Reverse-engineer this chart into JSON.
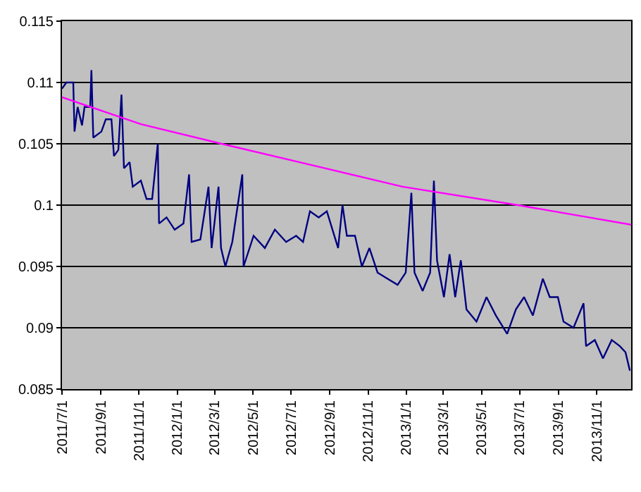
{
  "chart_data": {
    "type": "line",
    "marker": "none",
    "grid": "y",
    "xlim": [
      "2011-07-01",
      "2013-12-26"
    ],
    "ylim": [
      0.085,
      0.115
    ],
    "yticks": [
      0.085,
      0.09,
      0.095,
      0.1,
      0.105,
      0.11,
      0.115
    ],
    "xticks": [
      {
        "value": "2011-07-01",
        "label": "2011/7/1"
      },
      {
        "value": "2011-09-01",
        "label": "2011/9/1"
      },
      {
        "value": "2011-11-01",
        "label": "2011/11/1"
      },
      {
        "value": "2012-01-01",
        "label": "2012/1/1"
      },
      {
        "value": "2012-03-01",
        "label": "2012/3/1"
      },
      {
        "value": "2012-05-01",
        "label": "2012/5/1"
      },
      {
        "value": "2012-07-01",
        "label": "2012/7/1"
      },
      {
        "value": "2012-09-01",
        "label": "2012/9/1"
      },
      {
        "value": "2012-11-01",
        "label": "2012/11/1"
      },
      {
        "value": "2013-01-01",
        "label": "2013/1/1"
      },
      {
        "value": "2013-03-01",
        "label": "2013/3/1"
      },
      {
        "value": "2013-05-01",
        "label": "2013/5/1"
      },
      {
        "value": "2013-07-01",
        "label": "2013/7/1"
      },
      {
        "value": "2013-09-01",
        "label": "2013/9/1"
      },
      {
        "value": "2013-11-01",
        "label": "2013/11/1"
      }
    ],
    "series": [
      {
        "color": "#000080",
        "x": [
          "2011-07-01",
          "2011-07-08",
          "2011-07-19",
          "2011-07-21",
          "2011-07-26",
          "2011-08-02",
          "2011-08-06",
          "2011-08-15",
          "2011-08-17",
          "2011-08-20",
          "2011-09-02",
          "2011-09-09",
          "2011-09-18",
          "2011-09-22",
          "2011-09-29",
          "2011-10-04",
          "2011-10-08",
          "2011-10-17",
          "2011-10-22",
          "2011-11-04",
          "2011-11-13",
          "2011-11-22",
          "2011-12-01",
          "2011-12-03",
          "2011-12-15",
          "2011-12-28",
          "2012-01-11",
          "2012-01-20",
          "2012-01-24",
          "2012-02-07",
          "2012-02-20",
          "2012-02-25",
          "2012-03-07",
          "2012-03-11",
          "2012-03-18",
          "2012-03-29",
          "2012-04-14",
          "2012-04-16",
          "2012-05-02",
          "2012-05-20",
          "2012-06-05",
          "2012-06-23",
          "2012-07-09",
          "2012-07-20",
          "2012-07-31",
          "2012-08-14",
          "2012-08-27",
          "2012-09-05",
          "2012-09-14",
          "2012-09-21",
          "2012-09-28",
          "2012-10-11",
          "2012-10-22",
          "2012-11-03",
          "2012-11-16",
          "2012-12-02",
          "2012-12-18",
          "2012-12-31",
          "2013-01-09",
          "2013-01-14",
          "2013-01-27",
          "2013-02-08",
          "2013-02-14",
          "2013-02-19",
          "2013-03-02",
          "2013-03-11",
          "2013-03-20",
          "2013-03-29",
          "2013-04-07",
          "2013-04-23",
          "2013-05-09",
          "2013-05-24",
          "2013-06-11",
          "2013-06-25",
          "2013-07-08",
          "2013-07-22",
          "2013-08-07",
          "2013-08-18",
          "2013-08-31",
          "2013-09-09",
          "2013-09-25",
          "2013-10-11",
          "2013-10-15",
          "2013-10-29",
          "2013-11-11",
          "2013-11-25",
          "2013-12-08",
          "2013-12-17",
          "2013-12-24"
        ],
        "values": [
          0.1095,
          0.11,
          0.11,
          0.106,
          0.108,
          0.1065,
          0.108,
          0.108,
          0.111,
          0.1055,
          0.106,
          0.107,
          0.107,
          0.104,
          0.1045,
          0.109,
          0.103,
          0.1035,
          0.1015,
          0.102,
          0.1005,
          0.1005,
          0.105,
          0.0985,
          0.099,
          0.098,
          0.0985,
          0.1025,
          0.097,
          0.0972,
          0.1015,
          0.0965,
          0.1015,
          0.0965,
          0.095,
          0.097,
          0.1025,
          0.095,
          0.0975,
          0.0965,
          0.098,
          0.097,
          0.0975,
          0.097,
          0.0995,
          0.099,
          0.0995,
          0.098,
          0.0965,
          0.1,
          0.0975,
          0.0975,
          0.095,
          0.0965,
          0.0945,
          0.094,
          0.0935,
          0.0945,
          0.101,
          0.0945,
          0.093,
          0.0945,
          0.102,
          0.0955,
          0.0925,
          0.096,
          0.0925,
          0.0955,
          0.0915,
          0.0905,
          0.0925,
          0.091,
          0.0895,
          0.0915,
          0.0925,
          0.091,
          0.094,
          0.0925,
          0.0925,
          0.0905,
          0.09,
          0.092,
          0.0885,
          0.089,
          0.0875,
          0.089,
          0.0885,
          0.088,
          0.0865
        ]
      },
      {
        "color": "#ff00ff",
        "x": [
          "2011-07-01",
          "2011-11-04",
          "2012-03-12",
          "2012-07-31",
          "2012-12-26",
          "2013-06-28",
          "2013-12-26"
        ],
        "values": [
          0.1088,
          0.1066,
          0.105,
          0.1033,
          0.1015,
          0.1,
          0.0984
        ]
      }
    ]
  }
}
